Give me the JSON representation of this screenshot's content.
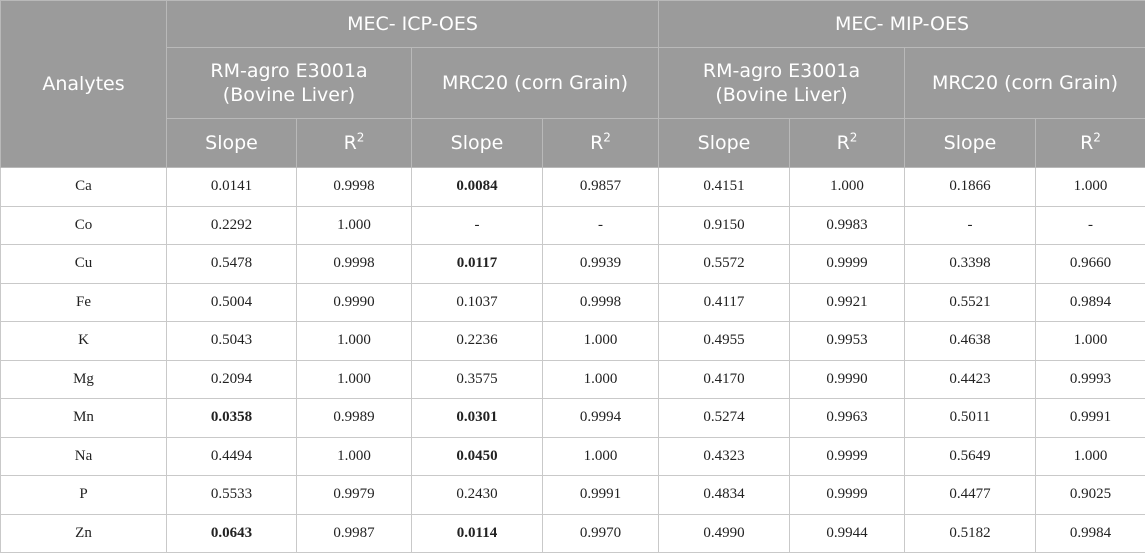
{
  "header": {
    "analytes_label": "Analytes",
    "groups": [
      "MEC- ICP-OES",
      "MEC- MIP-OES"
    ],
    "materials": [
      {
        "line1": "RM-agro E3001a",
        "line2": "(Bovine Liver)"
      },
      {
        "line1": "MRC20 (corn Grain)",
        "line2": ""
      },
      {
        "line1": "RM-agro E3001a",
        "line2": "(Bovine Liver)"
      },
      {
        "line1": "MRC20 (corn Grain)",
        "line2": ""
      }
    ],
    "slope_label": "Slope",
    "r_label": "R",
    "r_sup": "2"
  },
  "rows": [
    {
      "analyte": "Ca",
      "cells": [
        {
          "v": "0.0141"
        },
        {
          "v": "0.9998"
        },
        {
          "v": "0.0084",
          "bold": true
        },
        {
          "v": "0.9857"
        },
        {
          "v": "0.4151"
        },
        {
          "v": "1.000"
        },
        {
          "v": "0.1866"
        },
        {
          "v": "1.000"
        }
      ]
    },
    {
      "analyte": "Co",
      "cells": [
        {
          "v": "0.2292"
        },
        {
          "v": "1.000"
        },
        {
          "v": "-"
        },
        {
          "v": "-"
        },
        {
          "v": "0.9150"
        },
        {
          "v": "0.9983"
        },
        {
          "v": "-"
        },
        {
          "v": "-"
        }
      ]
    },
    {
      "analyte": "Cu",
      "cells": [
        {
          "v": "0.5478"
        },
        {
          "v": "0.9998"
        },
        {
          "v": "0.0117",
          "bold": true
        },
        {
          "v": "0.9939"
        },
        {
          "v": "0.5572"
        },
        {
          "v": "0.9999"
        },
        {
          "v": "0.3398"
        },
        {
          "v": "0.9660"
        }
      ]
    },
    {
      "analyte": "Fe",
      "cells": [
        {
          "v": "0.5004"
        },
        {
          "v": "0.9990"
        },
        {
          "v": "0.1037"
        },
        {
          "v": "0.9998"
        },
        {
          "v": "0.4117"
        },
        {
          "v": "0.9921"
        },
        {
          "v": "0.5521"
        },
        {
          "v": "0.9894"
        }
      ]
    },
    {
      "analyte": "K",
      "cells": [
        {
          "v": "0.5043"
        },
        {
          "v": "1.000"
        },
        {
          "v": "0.2236"
        },
        {
          "v": "1.000"
        },
        {
          "v": "0.4955"
        },
        {
          "v": "0.9953"
        },
        {
          "v": "0.4638"
        },
        {
          "v": "1.000"
        }
      ]
    },
    {
      "analyte": "Mg",
      "cells": [
        {
          "v": "0.2094"
        },
        {
          "v": "1.000"
        },
        {
          "v": "0.3575"
        },
        {
          "v": "1.000"
        },
        {
          "v": "0.4170"
        },
        {
          "v": "0.9990"
        },
        {
          "v": "0.4423"
        },
        {
          "v": "0.9993"
        }
      ]
    },
    {
      "analyte": "Mn",
      "cells": [
        {
          "v": "0.0358",
          "bold": true
        },
        {
          "v": "0.9989"
        },
        {
          "v": "0.0301",
          "bold": true
        },
        {
          "v": "0.9994"
        },
        {
          "v": "0.5274"
        },
        {
          "v": "0.9963"
        },
        {
          "v": "0.5011"
        },
        {
          "v": "0.9991"
        }
      ]
    },
    {
      "analyte": "Na",
      "cells": [
        {
          "v": "0.4494"
        },
        {
          "v": "1.000"
        },
        {
          "v": "0.0450",
          "bold": true
        },
        {
          "v": "1.000"
        },
        {
          "v": "0.4323"
        },
        {
          "v": "0.9999"
        },
        {
          "v": "0.5649"
        },
        {
          "v": "1.000"
        }
      ]
    },
    {
      "analyte": "P",
      "cells": [
        {
          "v": "0.5533"
        },
        {
          "v": "0.9979"
        },
        {
          "v": "0.2430"
        },
        {
          "v": "0.9991"
        },
        {
          "v": "0.4834"
        },
        {
          "v": "0.9999"
        },
        {
          "v": "0.4477"
        },
        {
          "v": "0.9025"
        }
      ]
    },
    {
      "analyte": "Zn",
      "cells": [
        {
          "v": "0.0643",
          "bold": true
        },
        {
          "v": "0.9987"
        },
        {
          "v": "0.0114",
          "bold": true
        },
        {
          "v": "0.9970"
        },
        {
          "v": "0.4990"
        },
        {
          "v": "0.9944"
        },
        {
          "v": "0.5182"
        },
        {
          "v": "0.9984"
        }
      ]
    }
  ]
}
